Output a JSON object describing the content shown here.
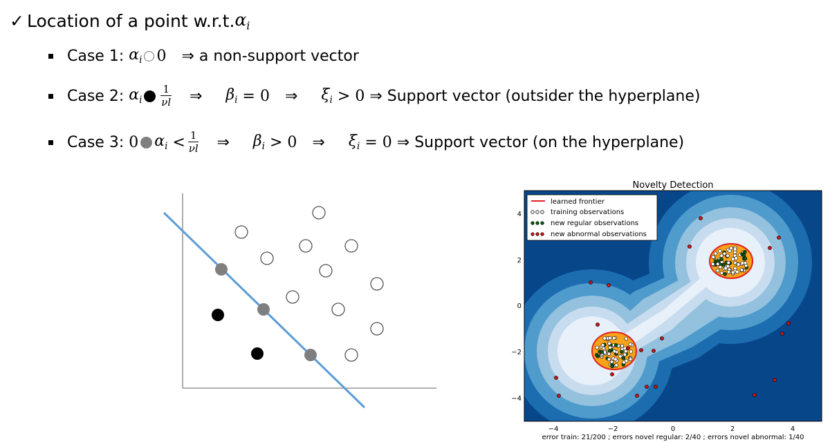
{
  "heading": {
    "check": "✓",
    "text": "Location of a point w.r.t. ",
    "var": "α",
    "sub": "i"
  },
  "cases": [
    {
      "label": "Case 1:",
      "var": "α",
      "sub": "i",
      "rhs": "0",
      "implies": "⇒",
      "result": "a non-support vector"
    },
    {
      "label": "Case 2:",
      "var": "α",
      "sub": "i",
      "frac_num": "1",
      "frac_den": "νl",
      "implies": "⇒",
      "beta": "β",
      "beta_sub": "i",
      "beta_rel": "= 0",
      "xi": "ξ",
      "xi_sub": "i",
      "xi_rel": "> 0",
      "result": "⇒ Support vector (outsider the hyperplane)"
    },
    {
      "label": "Case 3:",
      "pre": "0",
      "var": "α",
      "sub": "i",
      "lt": "<",
      "frac_num": "1",
      "frac_den": "νl",
      "implies": "⇒",
      "beta": "β",
      "beta_sub": "i",
      "beta_rel": "> 0",
      "xi": "ξ",
      "xi_sub": "i",
      "xi_rel": "= 0",
      "result": "⇒ Support vector (on the hyperplane)"
    }
  ],
  "diagram": {
    "colors": {
      "line": "#5b9bd5",
      "axis": "#7f7f7f",
      "open": "#555555",
      "black": "#000000",
      "gray": "#7f7f7f"
    }
  },
  "novelty": {
    "title": "Novelty Detection",
    "legend": [
      {
        "text": "learned frontier",
        "marker": "line",
        "color": "#e02020"
      },
      {
        "text": "training observations",
        "marker": "dots",
        "color": "#ffffff"
      },
      {
        "text": "new regular observations",
        "marker": "dots",
        "color": "#0b5a12"
      },
      {
        "text": "new abnormal observations",
        "marker": "dots",
        "color": "#c81414"
      }
    ],
    "x_ticks": [
      "−4",
      "−2",
      "0",
      "2",
      "4"
    ],
    "y_ticks": [
      "4",
      "2",
      "0",
      "−2",
      "−4"
    ],
    "caption": "error train: 21/200 ; errors novel regular: 2/40 ; errors novel abnormal: 1/40",
    "colors": {
      "lvl0": "#08468a",
      "lvl1": "#1b6db0",
      "lvl2": "#4f9bcc",
      "lvl3": "#93c1de",
      "lvl4": "#c8dcef",
      "lvl5": "#e8f0fa",
      "frontier": "#e02020",
      "inside": "#f7a21b"
    }
  }
}
